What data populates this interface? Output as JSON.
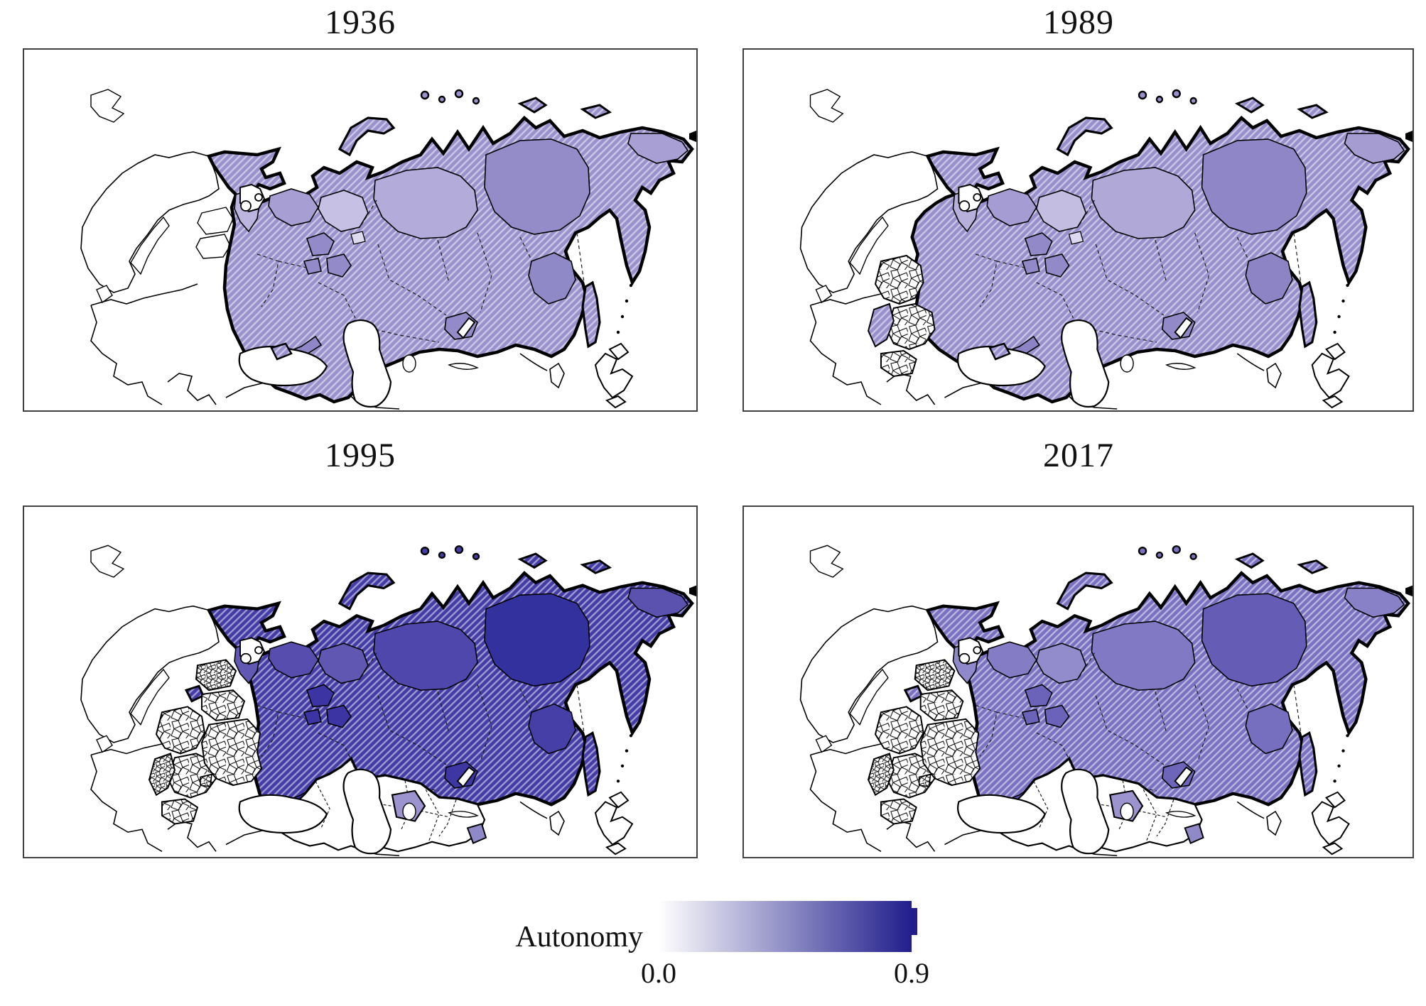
{
  "figure": {
    "type": "choropleth-small-multiples",
    "panels": [
      {
        "year": "1936",
        "features": {
          "era": "ussr36",
          "baltic_independent": true,
          "eastern_bloc_stipple": false,
          "former_soviet_stipple": false,
          "central_asia_white": false,
          "yugoslavia_hatched": false,
          "show_udmurt_patch": true
        },
        "fills": {
          "base": "#9A92CD",
          "karelia": "#BCB5DF",
          "arkhangelsk": "#A79FD4",
          "komi": "#C6C0E4",
          "urals": "#B3ACDA",
          "sakha": "#948CC9",
          "chukotka": "#A8A0D4",
          "amur": "#9089C8",
          "buryatia": "#938BC9",
          "volga": "#938BC9",
          "udmurt": "#DEDBF1",
          "caucasus_north": "#8E86C6",
          "kazakh_patch": "#9C94CE",
          "badakhshan": "#9089C8"
        }
      },
      {
        "year": "1989",
        "features": {
          "era": "ussr89",
          "baltic_independent": false,
          "eastern_bloc_stipple": true,
          "former_soviet_stipple": false,
          "central_asia_white": false,
          "yugoslavia_hatched": true,
          "show_udmurt_patch": true
        },
        "fills": {
          "base": "#9890CC",
          "karelia": "#B7B0DB",
          "arkhangelsk": "#A49CD2",
          "komi": "#C3BDE2",
          "urals": "#B0A9D8",
          "sakha": "#8E86C7",
          "chukotka": "#A59DD2",
          "amur": "#8C84C5",
          "buryatia": "#9189C8",
          "volga": "#9189C8",
          "udmurt": "#DCD8EF",
          "caucasus_north": "#8B83C5",
          "kazakh_patch": "#9C94CE",
          "badakhshan": "#9089C8"
        }
      },
      {
        "year": "1995",
        "features": {
          "era": "russia",
          "baltic_independent": false,
          "eastern_bloc_stipple": true,
          "former_soviet_stipple": true,
          "central_asia_white": true,
          "yugoslavia_hatched": false,
          "show_udmurt_patch": false
        },
        "fills": {
          "base": "#453DA6",
          "karelia": "#6158B3",
          "arkhangelsk": "#564DAF",
          "komi": "#6057B2",
          "urals": "#4F47AB",
          "sakha": "#33319E",
          "chukotka": "#5B52B0",
          "amur": "#473FA8",
          "buryatia": "#3E36A3",
          "volga": "#3C34A2",
          "udmurt": "#DEDBF1",
          "caucasus_north": "#322BA0",
          "kazakh_patch": "#9C94CE",
          "badakhshan": "#9089C8"
        }
      },
      {
        "year": "2017",
        "features": {
          "era": "russia",
          "baltic_independent": false,
          "eastern_bloc_stipple": true,
          "former_soviet_stipple": true,
          "central_asia_white": true,
          "yugoslavia_hatched": false,
          "show_udmurt_patch": false
        },
        "fills": {
          "base": "#7A72C1",
          "karelia": "#8F88CB",
          "arkhangelsk": "#847DC6",
          "komi": "#928BCC",
          "urals": "#8179C4",
          "sakha": "#645CB5",
          "chukotka": "#8981C8",
          "amur": "#766EBF",
          "buryatia": "#6D65BA",
          "volga": "#6B63B9",
          "udmurt": "#DEDBF1",
          "caucasus_north": "#5D55B3",
          "kazakh_patch": "#9C94CE",
          "badakhshan": "#9089C8"
        }
      }
    ],
    "colorbar": {
      "label": "Autonomy",
      "tick_min": "0.0",
      "tick_max": "0.9",
      "color_min": "#FFFFFF",
      "color_max": "#211E8C"
    }
  },
  "chart_data": {
    "type": "heatmap",
    "title": "Autonomy",
    "variable": "Autonomy",
    "scale_range": [
      0.0,
      0.9
    ],
    "colormap": [
      "#FFFFFF",
      "#211E8C"
    ],
    "panel_years": [
      "1936",
      "1989",
      "1995",
      "2017"
    ],
    "approx_mean_shading_per_year": {
      "1936": 0.35,
      "1989": 0.38,
      "1995": 0.75,
      "2017": 0.55
    },
    "notes": "Four-panel choropleth of regional autonomy over the (post-)Soviet space; hatched regions mark autonomous territories, stippled white mosaics mark subdivided neighboring states, white areas are outside the scale."
  }
}
